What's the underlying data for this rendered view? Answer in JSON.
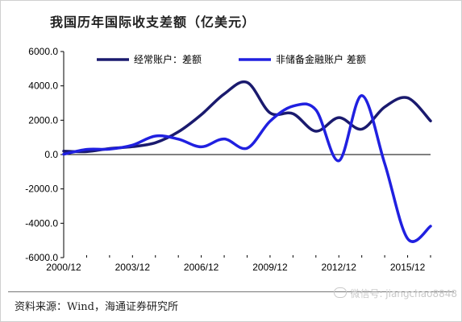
{
  "title": "我国历年国际收支差额（亿美元）",
  "source": "资料来源：Wind，海通证券研究所",
  "watermark": "微信号: jiangchao8848",
  "chart_data": {
    "type": "line",
    "title": "我国历年国际收支差额（亿美元）",
    "xlabel": "",
    "ylabel": "",
    "x": [
      "2000/12",
      "2001/12",
      "2002/12",
      "2003/12",
      "2004/12",
      "2005/12",
      "2006/12",
      "2007/12",
      "2008/12",
      "2009/12",
      "2010/12",
      "2011/12",
      "2012/12",
      "2013/12",
      "2014/12",
      "2015/12",
      "2016/12"
    ],
    "x_tick_labels": [
      "2000/12",
      "2003/12",
      "2006/12",
      "2009/12",
      "2012/12",
      "2015/12"
    ],
    "y_tick_labels": [
      "-6000.0",
      "-4000.0",
      "-2000.0",
      "0.0",
      "2000.0",
      "4000.0",
      "6000.0"
    ],
    "ylim": [
      -6000,
      6000
    ],
    "grid": false,
    "legend_position": "top",
    "series": [
      {
        "name": "经常账户：差额",
        "color": "#1a1a6e",
        "values": [
          200,
          170,
          350,
          460,
          690,
          1320,
          2320,
          3530,
          4200,
          2430,
          2380,
          1360,
          2150,
          1480,
          2770,
          3300,
          1960
        ]
      },
      {
        "name": "非储备金融账户 差额",
        "color": "#2020e0",
        "values": [
          20,
          300,
          320,
          550,
          1080,
          900,
          450,
          910,
          370,
          1940,
          2820,
          2600,
          -360,
          3430,
          -520,
          -4900,
          -4170
        ]
      }
    ]
  }
}
